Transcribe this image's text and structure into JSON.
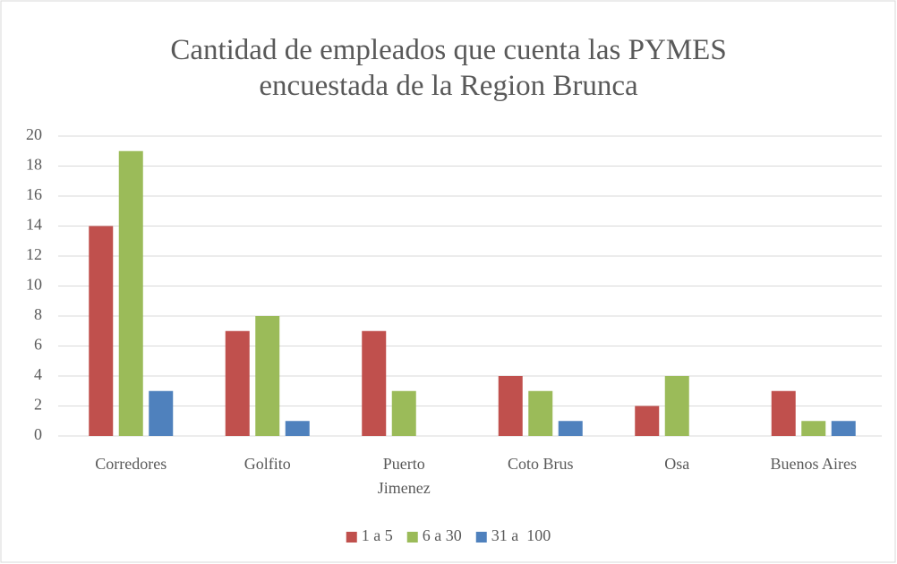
{
  "chart_data": {
    "type": "bar",
    "title": "Cantidad de empleados que cuenta las PYMES encuestada de la Region Brunca",
    "categories": [
      "Corredores",
      "Golfito",
      "Puerto Jimenez",
      "Coto Brus",
      "Osa",
      "Buenos Aires"
    ],
    "series": [
      {
        "name": "1 a 5",
        "color": "#c0504d",
        "values": [
          14,
          7,
          7,
          4,
          2,
          3
        ]
      },
      {
        "name": "6 a 30",
        "color": "#9bbb59",
        "values": [
          19,
          8,
          3,
          3,
          4,
          1
        ]
      },
      {
        "name": "31 a  100",
        "color": "#4f81bd",
        "values": [
          3,
          1,
          0,
          1,
          0,
          1
        ]
      }
    ],
    "ylim": [
      0,
      20
    ],
    "yticks": [
      0,
      2,
      4,
      6,
      8,
      10,
      12,
      14,
      16,
      18,
      20
    ],
    "grid": true,
    "legend": "bottom"
  }
}
